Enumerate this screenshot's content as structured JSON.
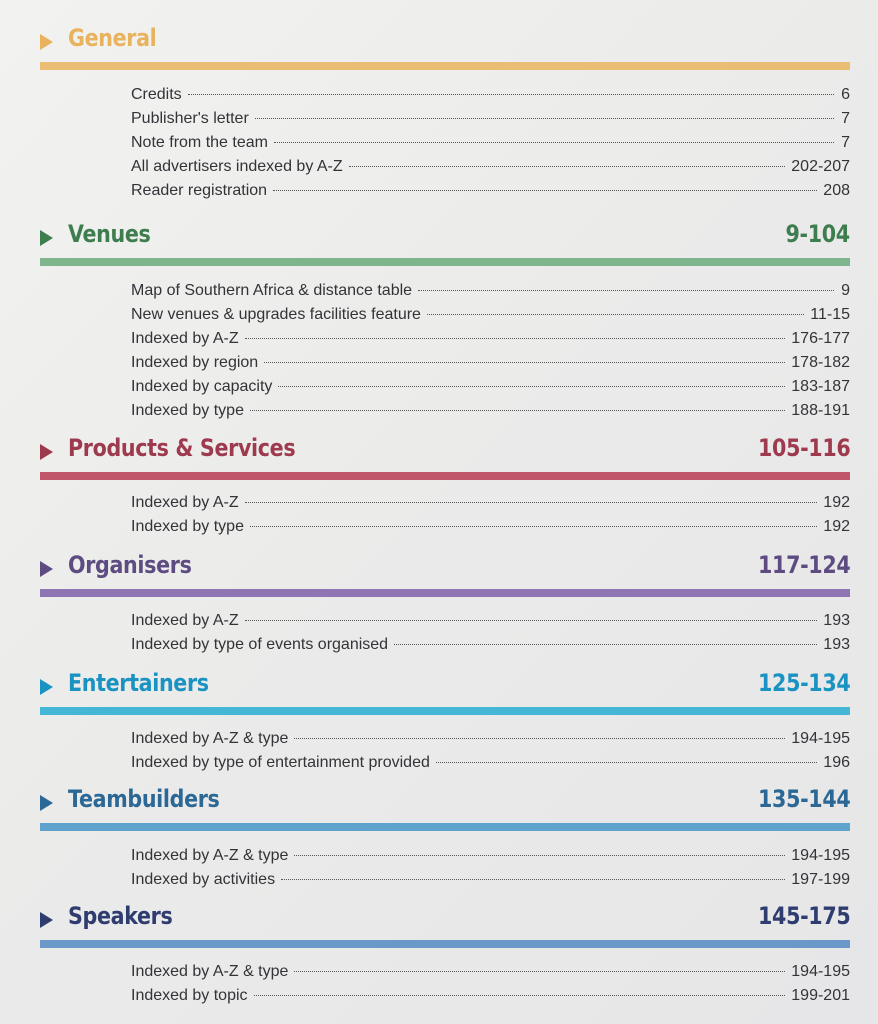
{
  "sections": [
    {
      "title": "General",
      "range": "",
      "color": "#e9b25e",
      "rule": "#ebbd74",
      "entries": [
        {
          "label": "Credits",
          "page": "6"
        },
        {
          "label": "Publisher's letter",
          "page": "7"
        },
        {
          "label": "Note from the team",
          "page": "7"
        },
        {
          "label": "All advertisers indexed by  A-Z",
          "page": "202-207"
        },
        {
          "label": "Reader registration",
          "page": "208"
        }
      ]
    },
    {
      "title": "Venues",
      "range": "9-104",
      "color": "#3e7d4e",
      "rule": "#7fb58c",
      "entries": [
        {
          "label": "Map of Southern Africa & distance table",
          "page": "9"
        },
        {
          "label": "New venues & upgrades facilities feature",
          "page": "11-15"
        },
        {
          "label": "Indexed by A-Z",
          "page": "176-177"
        },
        {
          "label": "Indexed by region",
          "page": "178-182"
        },
        {
          "label": "Indexed by capacity",
          "page": "183-187"
        },
        {
          "label": "Indexed by type",
          "page": "188-191"
        }
      ]
    },
    {
      "title": "Products & Services",
      "range": "105-116",
      "color": "#9e3a4e",
      "rule": "#c0566a",
      "entries": [
        {
          "label": "Indexed by A-Z",
          "page": "192"
        },
        {
          "label": "Indexed by type",
          "page": "192"
        }
      ]
    },
    {
      "title": "Organisers",
      "range": "117-124",
      "color": "#5d4b82",
      "rule": "#8f75b4",
      "entries": [
        {
          "label": "Indexed by A-Z",
          "page": "193"
        },
        {
          "label": "Indexed by type of events organised",
          "page": "193"
        }
      ]
    },
    {
      "title": "Entertainers",
      "range": "125-134",
      "color": "#1a93c2",
      "rule": "#45b7d6",
      "entries": [
        {
          "label": "Indexed by A-Z & type",
          "page": "194-195"
        },
        {
          "label": "Indexed by type of entertainment provided",
          "page": "196"
        }
      ]
    },
    {
      "title": "Teambuilders",
      "range": "135-144",
      "color": "#2c6896",
      "rule": "#5fa3cc",
      "entries": [
        {
          "label": "Indexed by A-Z & type",
          "page": "194-195"
        },
        {
          "label": "Indexed by activities",
          "page": "197-199"
        }
      ]
    },
    {
      "title": "Speakers",
      "range": "145-175",
      "color": "#2e3c70",
      "rule": "#6a98c8",
      "entries": [
        {
          "label": "Indexed by A-Z & type",
          "page": "194-195"
        },
        {
          "label": "Indexed by topic",
          "page": "199-201"
        }
      ]
    }
  ]
}
